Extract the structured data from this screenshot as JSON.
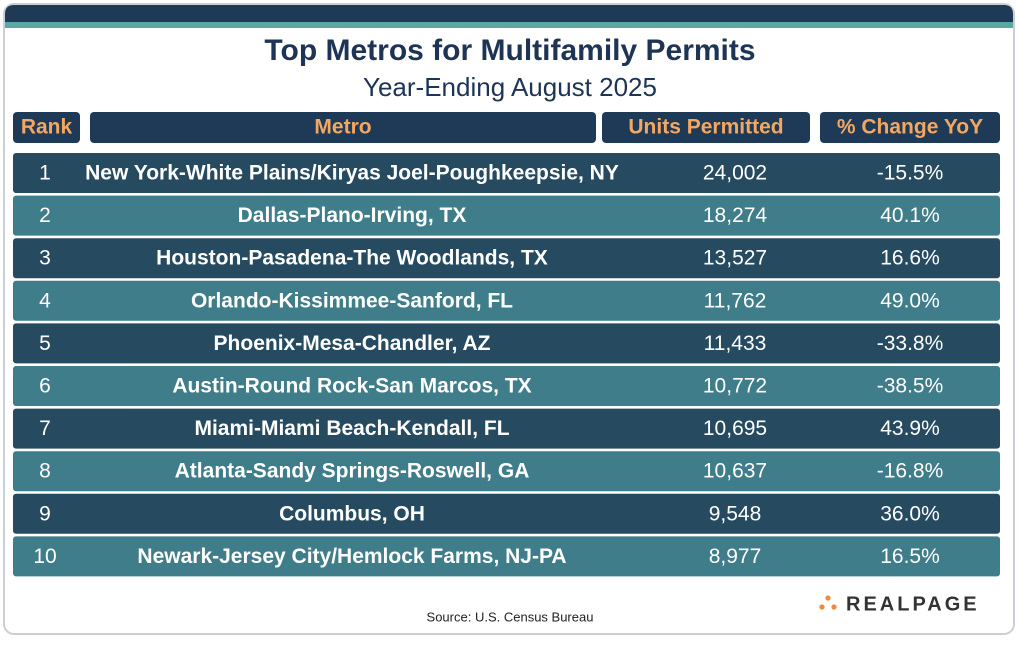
{
  "header": {
    "title": "Top Metros for Multifamily Permits",
    "subtitle": "Year-Ending August 2025"
  },
  "table": {
    "columns": [
      "Rank",
      "Metro",
      "Units Permitted",
      "% Change YoY"
    ],
    "rows": [
      [
        "1",
        "New York-White Plains/Kiryas Joel-Poughkeepsie, NY",
        "24,002",
        "-15.5%"
      ],
      [
        "2",
        "Dallas-Plano-Irving, TX",
        "18,274",
        "40.1%"
      ],
      [
        "3",
        "Houston-Pasadena-The Woodlands, TX",
        "13,527",
        "16.6%"
      ],
      [
        "4",
        "Orlando-Kissimmee-Sanford, FL",
        "11,762",
        "49.0%"
      ],
      [
        "5",
        "Phoenix-Mesa-Chandler, AZ",
        "11,433",
        "-33.8%"
      ],
      [
        "6",
        "Austin-Round Rock-San Marcos, TX",
        "10,772",
        "-38.5%"
      ],
      [
        "7",
        "Miami-Miami Beach-Kendall, FL",
        "10,695",
        "43.9%"
      ],
      [
        "8",
        "Atlanta-Sandy Springs-Roswell, GA",
        "10,637",
        "-16.8%"
      ],
      [
        "9",
        "Columbus, OH",
        "9,548",
        "36.0%"
      ],
      [
        "10",
        "Newark-Jersey City/Hemlock Farms, NJ-PA",
        "8,977",
        "16.5%"
      ]
    ]
  },
  "footer": {
    "source": "Source: U.S. Census Bureau",
    "logo": "REALPAGE"
  }
}
